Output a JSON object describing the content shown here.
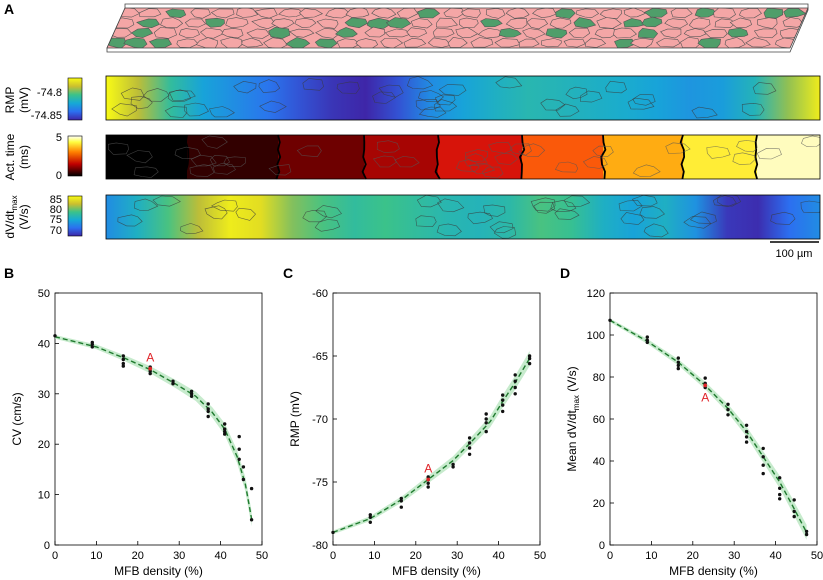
{
  "panel_labels": {
    "a": "A",
    "b": "B",
    "c": "C",
    "d": "D"
  },
  "colors": {
    "myocyte": "#f4a6a6",
    "mfb": "#4f9e6a",
    "outline": "#555555",
    "fit_line": "#1f7a2e",
    "ci_band": "#b9e6c0",
    "marker": "#111111",
    "annotation": "#e0252a"
  },
  "panel_a": {
    "strips": [
      {
        "label_line1": "RMP",
        "label_line2": "(mV)",
        "ticks": [
          "-74.8",
          "-74.85"
        ],
        "colormap": "parula",
        "profile": [
          1.0,
          0.78,
          0.55,
          0.38,
          0.3,
          0.22,
          0.12,
          0.04,
          0.0,
          0.12,
          0.3,
          0.38,
          0.45,
          0.5,
          0.48,
          0.45,
          0.42,
          0.38,
          0.33,
          0.36,
          0.48,
          0.72,
          0.95
        ]
      },
      {
        "label_line1": "Act. time",
        "label_line2": "(ms)",
        "ticks": [
          "5",
          "0"
        ],
        "colormap": "hot",
        "bands": [
          0.0,
          0.1,
          0.22,
          0.34,
          0.45,
          0.58,
          0.72,
          0.86,
          1.0
        ]
      },
      {
        "label_line1": "dV/dt",
        "label_sub": "max",
        "label_line2": "(V/s)",
        "ticks": [
          "85",
          "80",
          "75",
          "70"
        ],
        "colormap": "parula",
        "profile": [
          0.3,
          0.45,
          0.62,
          0.78,
          0.95,
          0.9,
          0.7,
          0.62,
          0.55,
          0.6,
          0.55,
          0.5,
          0.48,
          0.52,
          0.62,
          0.58,
          0.45,
          0.38,
          0.45,
          0.32,
          0.05,
          0.02,
          0.2,
          0.3
        ]
      }
    ],
    "scalebar_label": "100 µm"
  },
  "chart_data": [
    {
      "panel": "B",
      "type": "scatter",
      "xlabel": "MFB density (%)",
      "ylabel": "CV (cm/s)",
      "xlim": [
        0,
        50
      ],
      "ylim": [
        0,
        50
      ],
      "xticks": [
        0,
        10,
        20,
        30,
        40,
        50
      ],
      "yticks": [
        0,
        10,
        20,
        30,
        40,
        50
      ],
      "fit": {
        "x": [
          0,
          10,
          17,
          23,
          29,
          34,
          38,
          41,
          44,
          46,
          47.5
        ],
        "y": [
          41.3,
          39.3,
          37.0,
          34.8,
          32.0,
          29.5,
          26.3,
          23.0,
          17.5,
          12.0,
          5.2
        ]
      },
      "points": [
        {
          "x": 0,
          "y": 41.5
        },
        {
          "x": 9,
          "y": 39.3
        },
        {
          "x": 9,
          "y": 39.8
        },
        {
          "x": 9,
          "y": 40.2
        },
        {
          "x": 16.5,
          "y": 37.5
        },
        {
          "x": 16.5,
          "y": 36.8
        },
        {
          "x": 16.5,
          "y": 36.0
        },
        {
          "x": 16.5,
          "y": 35.5
        },
        {
          "x": 23,
          "y": 35.3
        },
        {
          "x": 23,
          "y": 34.5
        },
        {
          "x": 23,
          "y": 34.0
        },
        {
          "x": 28.5,
          "y": 32.5
        },
        {
          "x": 28.5,
          "y": 32.0
        },
        {
          "x": 33,
          "y": 30.5
        },
        {
          "x": 33,
          "y": 30.0
        },
        {
          "x": 33,
          "y": 29.5
        },
        {
          "x": 37,
          "y": 28.0
        },
        {
          "x": 37,
          "y": 27.0
        },
        {
          "x": 37,
          "y": 26.5
        },
        {
          "x": 37,
          "y": 25.5
        },
        {
          "x": 41,
          "y": 24.0
        },
        {
          "x": 41,
          "y": 23.0
        },
        {
          "x": 41,
          "y": 22.5
        },
        {
          "x": 41,
          "y": 22.0
        },
        {
          "x": 44.5,
          "y": 21.5
        },
        {
          "x": 44.5,
          "y": 19.0
        },
        {
          "x": 44.5,
          "y": 17.0
        },
        {
          "x": 45.5,
          "y": 15.5
        },
        {
          "x": 45.5,
          "y": 13.0
        },
        {
          "x": 47.5,
          "y": 11.2
        },
        {
          "x": 47.5,
          "y": 5.0
        }
      ],
      "annotation": {
        "text": "A",
        "x": 23,
        "y": 35.0
      }
    },
    {
      "panel": "C",
      "type": "scatter",
      "xlabel": "MFB density (%)",
      "ylabel": "RMP (mV)",
      "xlim": [
        0,
        50
      ],
      "ylim": [
        -80,
        -60
      ],
      "xticks": [
        0,
        10,
        20,
        30,
        40,
        50
      ],
      "yticks": [
        -80,
        -75,
        -70,
        -65,
        -60
      ],
      "fit": {
        "x": [
          0,
          9,
          17,
          23,
          29,
          34,
          38,
          41,
          44,
          47.5
        ],
        "y": [
          -79.0,
          -77.9,
          -76.3,
          -74.8,
          -73.3,
          -71.6,
          -70.2,
          -68.6,
          -67.1,
          -65.2
        ]
      },
      "points": [
        {
          "x": 0,
          "y": -79.0
        },
        {
          "x": 9,
          "y": -78.2
        },
        {
          "x": 9,
          "y": -77.8
        },
        {
          "x": 9,
          "y": -77.6
        },
        {
          "x": 16.5,
          "y": -77.0
        },
        {
          "x": 16.5,
          "y": -76.5
        },
        {
          "x": 16.5,
          "y": -76.3
        },
        {
          "x": 23,
          "y": -75.4
        },
        {
          "x": 23,
          "y": -75.1
        },
        {
          "x": 23,
          "y": -74.8
        },
        {
          "x": 23,
          "y": -74.6
        },
        {
          "x": 29,
          "y": -73.8
        },
        {
          "x": 29,
          "y": -73.6
        },
        {
          "x": 33,
          "y": -72.8
        },
        {
          "x": 33,
          "y": -72.3
        },
        {
          "x": 33,
          "y": -71.9
        },
        {
          "x": 33,
          "y": -71.5
        },
        {
          "x": 37,
          "y": -71.0
        },
        {
          "x": 37,
          "y": -70.3
        },
        {
          "x": 37,
          "y": -70.0
        },
        {
          "x": 37,
          "y": -69.6
        },
        {
          "x": 41,
          "y": -69.4
        },
        {
          "x": 41,
          "y": -68.9
        },
        {
          "x": 41,
          "y": -68.5
        },
        {
          "x": 41,
          "y": -68.1
        },
        {
          "x": 44,
          "y": -68.0
        },
        {
          "x": 44,
          "y": -67.5
        },
        {
          "x": 44,
          "y": -67.0
        },
        {
          "x": 44,
          "y": -66.5
        },
        {
          "x": 47.5,
          "y": -65.6
        },
        {
          "x": 47.5,
          "y": -65.2
        },
        {
          "x": 47.5,
          "y": -65.0
        }
      ],
      "annotation": {
        "text": "A",
        "x": 23,
        "y": -74.8
      }
    },
    {
      "panel": "D",
      "type": "scatter",
      "xlabel": "MFB density (%)",
      "ylabel": "Mean dV/dt",
      "ylabel_sub": "max",
      "ylabel_suffix": " (V/s)",
      "xlim": [
        0,
        50
      ],
      "ylim": [
        0,
        120
      ],
      "xticks": [
        0,
        10,
        20,
        30,
        40,
        50
      ],
      "yticks": [
        0,
        20,
        40,
        60,
        80,
        100,
        120
      ],
      "fit": {
        "x": [
          0,
          9,
          16.5,
          23,
          28.5,
          33,
          37,
          41,
          44,
          47.5
        ],
        "y": [
          107,
          97,
          87,
          76,
          65,
          54,
          42,
          30,
          19,
          6
        ]
      },
      "points": [
        {
          "x": 0,
          "y": 107
        },
        {
          "x": 9,
          "y": 99
        },
        {
          "x": 9,
          "y": 97.5
        },
        {
          "x": 9,
          "y": 96.5
        },
        {
          "x": 16.5,
          "y": 89
        },
        {
          "x": 16.5,
          "y": 87
        },
        {
          "x": 16.5,
          "y": 85.5
        },
        {
          "x": 16.5,
          "y": 84
        },
        {
          "x": 23,
          "y": 79.5
        },
        {
          "x": 23,
          "y": 77
        },
        {
          "x": 23,
          "y": 75
        },
        {
          "x": 28.5,
          "y": 67
        },
        {
          "x": 28.5,
          "y": 64.5
        },
        {
          "x": 28.5,
          "y": 62
        },
        {
          "x": 33,
          "y": 57
        },
        {
          "x": 33,
          "y": 54
        },
        {
          "x": 33,
          "y": 51.5
        },
        {
          "x": 33,
          "y": 49
        },
        {
          "x": 37,
          "y": 46
        },
        {
          "x": 37,
          "y": 42
        },
        {
          "x": 37,
          "y": 38
        },
        {
          "x": 37,
          "y": 34
        },
        {
          "x": 41,
          "y": 32
        },
        {
          "x": 41,
          "y": 27
        },
        {
          "x": 41,
          "y": 24
        },
        {
          "x": 41,
          "y": 22
        },
        {
          "x": 44.5,
          "y": 21.5
        },
        {
          "x": 44.5,
          "y": 16
        },
        {
          "x": 44.5,
          "y": 13.5
        },
        {
          "x": 47.5,
          "y": 6.5
        },
        {
          "x": 47.5,
          "y": 5
        }
      ],
      "annotation": {
        "text": "A",
        "x": 23,
        "y": 76,
        "below": true
      }
    }
  ]
}
